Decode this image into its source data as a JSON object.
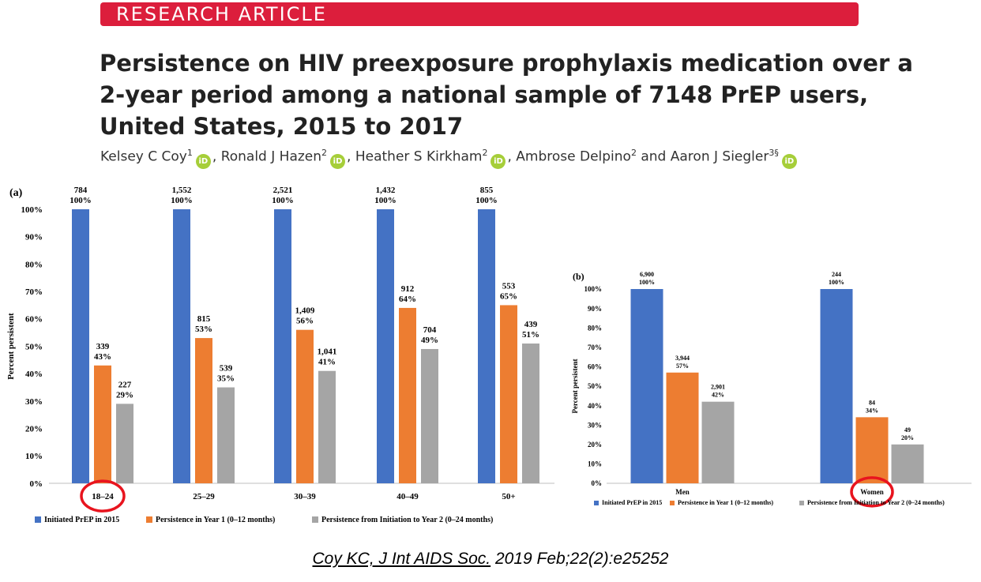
{
  "header": {
    "banner": "RESEARCH ARTICLE"
  },
  "title_lines": [
    "Persistence on HIV preexposure prophylaxis medication over a",
    "2-year period among a national sample of 7148 PrEP users,",
    "United States, 2015 to 2017"
  ],
  "authors": [
    {
      "name": "Kelsey C Coy",
      "sup": "1",
      "orcid": true,
      "sep": ", "
    },
    {
      "name": "Ronald J Hazen",
      "sup": "2",
      "orcid": true,
      "sep": ", "
    },
    {
      "name": "Heather S Kirkham",
      "sup": "2",
      "orcid": true,
      "sep": ", "
    },
    {
      "name": "Ambrose Delpino",
      "sup": "2",
      "orcid": false,
      "sep": " and "
    },
    {
      "name": "Aaron J Siegler",
      "sup": "3§",
      "orcid": true,
      "sep": ""
    }
  ],
  "orcid_label": "iD",
  "citation": {
    "underlined": "Coy KC, J Int AIDS Soc.",
    "rest": " 2019 Feb;22(2):e25252"
  },
  "colors": {
    "banner": "#dc1e3c",
    "orcid": "#a6ce39",
    "series": [
      "#4472c4",
      "#ed7d31",
      "#a5a5a5"
    ],
    "highlight_circle": "#e8141e"
  },
  "chart_data": [
    {
      "type": "bar",
      "panel_label": "(a)",
      "ylabel": "Percent persistent",
      "ylim": [
        0,
        100
      ],
      "yticks": [
        "0%",
        "10%",
        "20%",
        "30%",
        "40%",
        "50%",
        "60%",
        "70%",
        "80%",
        "90%",
        "100%"
      ],
      "categories": [
        "18–24",
        "25–29",
        "30–39",
        "40–49",
        "50+"
      ],
      "series": [
        {
          "name": "Initiated PrEP in 2015",
          "values": [
            100,
            100,
            100,
            100,
            100
          ],
          "counts": [
            "784",
            "1,552",
            "2,521",
            "1,432",
            "855"
          ]
        },
        {
          "name": "Persistence in Year 1 (0–12 months)",
          "values": [
            43,
            53,
            56,
            64,
            65
          ],
          "counts": [
            "339",
            "815",
            "1,409",
            "912",
            "553"
          ]
        },
        {
          "name": "Persistence from Initiation to Year 2 (0–24 months)",
          "values": [
            29,
            35,
            41,
            49,
            51
          ],
          "counts": [
            "227",
            "539",
            "1,041",
            "704",
            "439"
          ]
        }
      ],
      "highlighted_category": "18–24",
      "legend": "bottom"
    },
    {
      "type": "bar",
      "panel_label": "(b)",
      "ylabel": "Percent persistent",
      "ylim": [
        0,
        100
      ],
      "yticks": [
        "0%",
        "10%",
        "20%",
        "30%",
        "40%",
        "50%",
        "60%",
        "70%",
        "80%",
        "90%",
        "100%"
      ],
      "categories": [
        "Men",
        "Women"
      ],
      "series": [
        {
          "name": "Initiated PrEP in 2015",
          "values": [
            100,
            100
          ],
          "counts": [
            "6,900",
            "244"
          ]
        },
        {
          "name": "Persistence in Year 1 (0–12 months)",
          "values": [
            57,
            34
          ],
          "counts": [
            "3,944",
            "84"
          ]
        },
        {
          "name": "Persistence from Initiation to Year 2 (0–24 months)",
          "values": [
            42,
            20
          ],
          "counts": [
            "2,901",
            "49"
          ]
        }
      ],
      "highlighted_category": "Women",
      "legend": "bottom"
    }
  ]
}
